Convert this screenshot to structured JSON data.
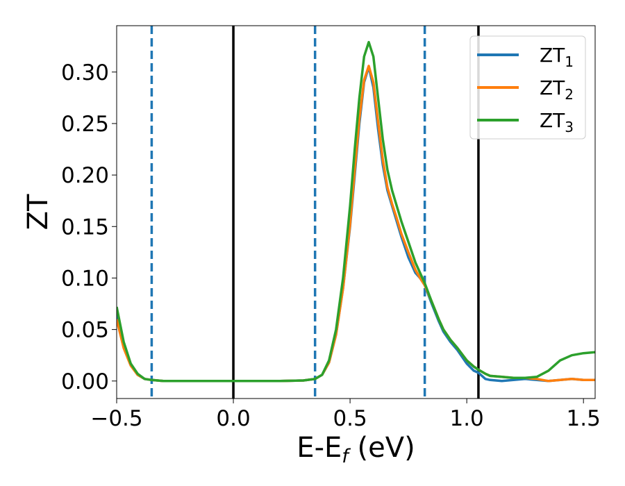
{
  "chart_data": {
    "type": "line",
    "xlabel_main": "E-E",
    "xlabel_sub": "f",
    "xlabel_tail": " (eV)",
    "ylabel": "ZT",
    "xlim": [
      -0.5,
      1.55
    ],
    "ylim": [
      -0.017,
      0.345
    ],
    "xticks": [
      -0.5,
      0.0,
      0.5,
      1.0,
      1.5
    ],
    "xtick_labels": [
      "−0.5",
      "0.0",
      "0.5",
      "1.0",
      "1.5"
    ],
    "yticks": [
      0.0,
      0.05,
      0.1,
      0.15,
      0.2,
      0.25,
      0.3
    ],
    "ytick_labels": [
      "0.00",
      "0.05",
      "0.10",
      "0.15",
      "0.20",
      "0.25",
      "0.30"
    ],
    "grid": false,
    "legend_position": "top-right",
    "vertical_lines": [
      {
        "x": -0.35,
        "style": "dashed",
        "color": "#1f77b4"
      },
      {
        "x": 0.0,
        "style": "solid",
        "color": "#000000"
      },
      {
        "x": 0.35,
        "style": "dashed",
        "color": "#1f77b4"
      },
      {
        "x": 0.82,
        "style": "dashed",
        "color": "#1f77b4"
      },
      {
        "x": 1.05,
        "style": "solid",
        "color": "#000000"
      }
    ],
    "series": [
      {
        "name": "ZT",
        "sub": "1",
        "color": "#1f77b4",
        "x": [
          -0.5,
          -0.47,
          -0.44,
          -0.41,
          -0.38,
          -0.35,
          -0.3,
          -0.2,
          -0.1,
          0.0,
          0.1,
          0.2,
          0.3,
          0.35,
          0.38,
          0.41,
          0.44,
          0.47,
          0.5,
          0.52,
          0.54,
          0.56,
          0.58,
          0.6,
          0.62,
          0.64,
          0.66,
          0.68,
          0.7,
          0.72,
          0.75,
          0.78,
          0.8,
          0.82,
          0.85,
          0.88,
          0.9,
          0.93,
          0.96,
          1.0,
          1.03,
          1.05,
          1.08,
          1.1,
          1.15,
          1.2,
          1.25,
          1.3,
          1.35,
          1.4,
          1.45,
          1.5,
          1.55
        ],
        "y": [
          0.065,
          0.035,
          0.016,
          0.006,
          0.002,
          0.001,
          0.0,
          0.0,
          0.0,
          0.0,
          0.0,
          0.0,
          0.0005,
          0.002,
          0.006,
          0.018,
          0.045,
          0.09,
          0.15,
          0.2,
          0.25,
          0.29,
          0.305,
          0.285,
          0.245,
          0.21,
          0.185,
          0.17,
          0.155,
          0.14,
          0.12,
          0.105,
          0.1,
          0.093,
          0.075,
          0.058,
          0.048,
          0.038,
          0.03,
          0.017,
          0.01,
          0.008,
          0.002,
          0.001,
          0.0,
          0.001,
          0.002,
          0.001,
          0.0,
          0.001,
          0.002,
          0.001,
          0.001
        ]
      },
      {
        "name": "ZT",
        "sub": "2",
        "color": "#ff7f0e",
        "x": [
          -0.5,
          -0.47,
          -0.44,
          -0.41,
          -0.38,
          -0.35,
          -0.3,
          -0.2,
          -0.1,
          0.0,
          0.1,
          0.2,
          0.3,
          0.35,
          0.38,
          0.41,
          0.44,
          0.47,
          0.5,
          0.52,
          0.54,
          0.56,
          0.58,
          0.6,
          0.62,
          0.64,
          0.66,
          0.68,
          0.7,
          0.72,
          0.75,
          0.78,
          0.8,
          0.82,
          0.85,
          0.88,
          0.9,
          0.93,
          0.96,
          1.0,
          1.03,
          1.05,
          1.08,
          1.1,
          1.15,
          1.2,
          1.25,
          1.3,
          1.35,
          1.4,
          1.45,
          1.5,
          1.55
        ],
        "y": [
          0.06,
          0.032,
          0.015,
          0.006,
          0.002,
          0.001,
          0.0,
          0.0,
          0.0,
          0.0,
          0.0,
          0.0,
          0.0005,
          0.002,
          0.006,
          0.018,
          0.045,
          0.09,
          0.152,
          0.205,
          0.255,
          0.292,
          0.306,
          0.29,
          0.252,
          0.215,
          0.188,
          0.172,
          0.158,
          0.143,
          0.125,
          0.108,
          0.1,
          0.093,
          0.077,
          0.06,
          0.05,
          0.04,
          0.032,
          0.02,
          0.014,
          0.011,
          0.007,
          0.005,
          0.004,
          0.003,
          0.003,
          0.002,
          0.0,
          0.001,
          0.002,
          0.001,
          0.001
        ]
      },
      {
        "name": "ZT",
        "sub": "3",
        "color": "#2ca02c",
        "x": [
          -0.5,
          -0.47,
          -0.44,
          -0.41,
          -0.38,
          -0.35,
          -0.3,
          -0.2,
          -0.1,
          0.0,
          0.1,
          0.2,
          0.3,
          0.35,
          0.38,
          0.41,
          0.44,
          0.47,
          0.5,
          0.52,
          0.54,
          0.56,
          0.58,
          0.6,
          0.62,
          0.64,
          0.66,
          0.68,
          0.7,
          0.72,
          0.75,
          0.78,
          0.8,
          0.82,
          0.85,
          0.88,
          0.9,
          0.93,
          0.96,
          1.0,
          1.03,
          1.05,
          1.08,
          1.1,
          1.15,
          1.2,
          1.25,
          1.3,
          1.35,
          1.4,
          1.45,
          1.5,
          1.55
        ],
        "y": [
          0.072,
          0.038,
          0.017,
          0.007,
          0.002,
          0.001,
          0.0,
          0.0,
          0.0,
          0.0,
          0.0,
          0.0,
          0.0005,
          0.002,
          0.006,
          0.02,
          0.05,
          0.1,
          0.17,
          0.225,
          0.275,
          0.315,
          0.329,
          0.315,
          0.275,
          0.235,
          0.205,
          0.185,
          0.17,
          0.155,
          0.135,
          0.115,
          0.105,
          0.095,
          0.077,
          0.06,
          0.05,
          0.04,
          0.032,
          0.02,
          0.014,
          0.011,
          0.007,
          0.005,
          0.004,
          0.003,
          0.003,
          0.004,
          0.01,
          0.02,
          0.025,
          0.027,
          0.028
        ]
      }
    ]
  }
}
